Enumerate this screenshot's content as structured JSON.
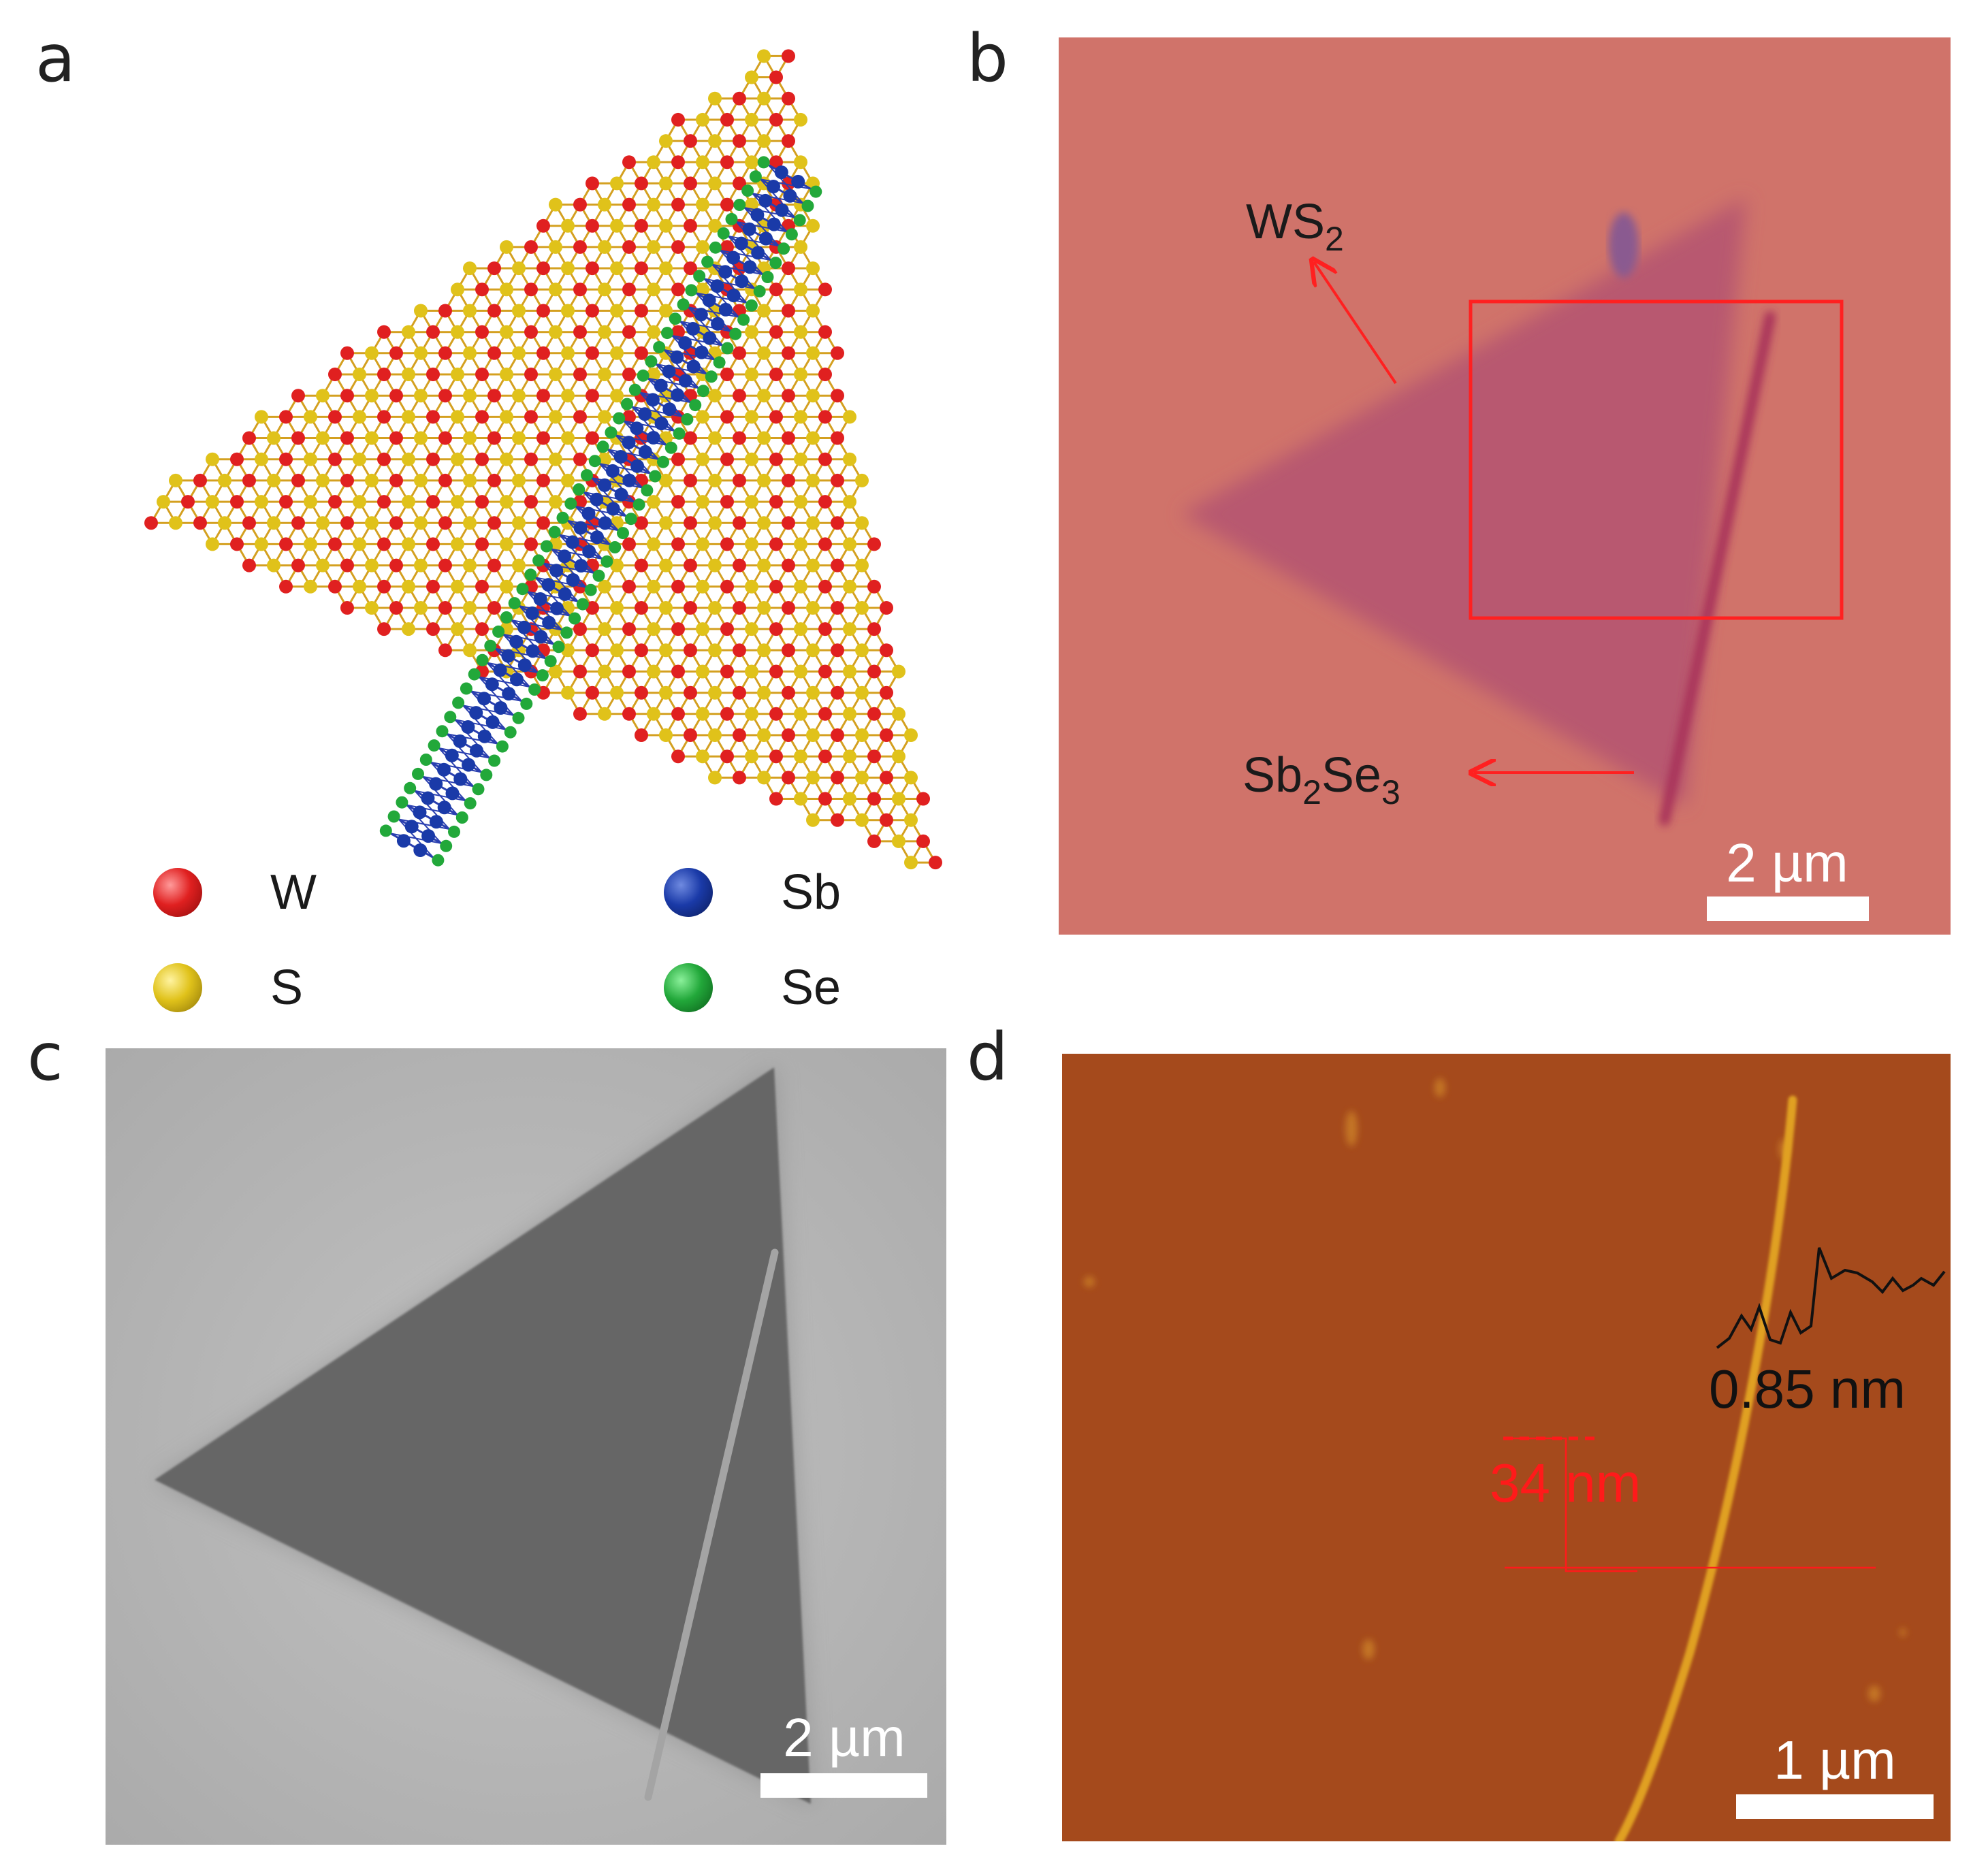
{
  "panels": {
    "a": {
      "letter": "a",
      "legend": [
        {
          "symbol": "W",
          "color": "#e02020"
        },
        {
          "symbol": "Sb",
          "color": "#1a3aa8"
        },
        {
          "symbol": "S",
          "color": "#e0c21a"
        },
        {
          "symbol": "Se",
          "color": "#22a83a"
        }
      ]
    },
    "b": {
      "letter": "b",
      "label_ws2_main": "WS",
      "label_ws2_sub": "2",
      "label_sb2se3_p1": "Sb",
      "label_sb2se3_s1": "2",
      "label_sb2se3_p2": "Se",
      "label_sb2se3_s2": "3",
      "scale_bar": "2 µm",
      "colors": {
        "background": "#d0736a",
        "flake": "#b8596f",
        "wire": "#a8305a",
        "annotation": "#ff2020"
      }
    },
    "c": {
      "letter": "c",
      "scale_bar": "2 µm",
      "colors": {
        "background": "#b9b9b9",
        "flake": "#666666"
      }
    },
    "d": {
      "letter": "d",
      "height_red": "34 nm",
      "height_black": "0.85 nm",
      "scale_bar": "1 µm",
      "colors": {
        "background": "#a54a1c",
        "wire": "#e0a020",
        "profile_red": "#ff1a1a"
      }
    }
  }
}
